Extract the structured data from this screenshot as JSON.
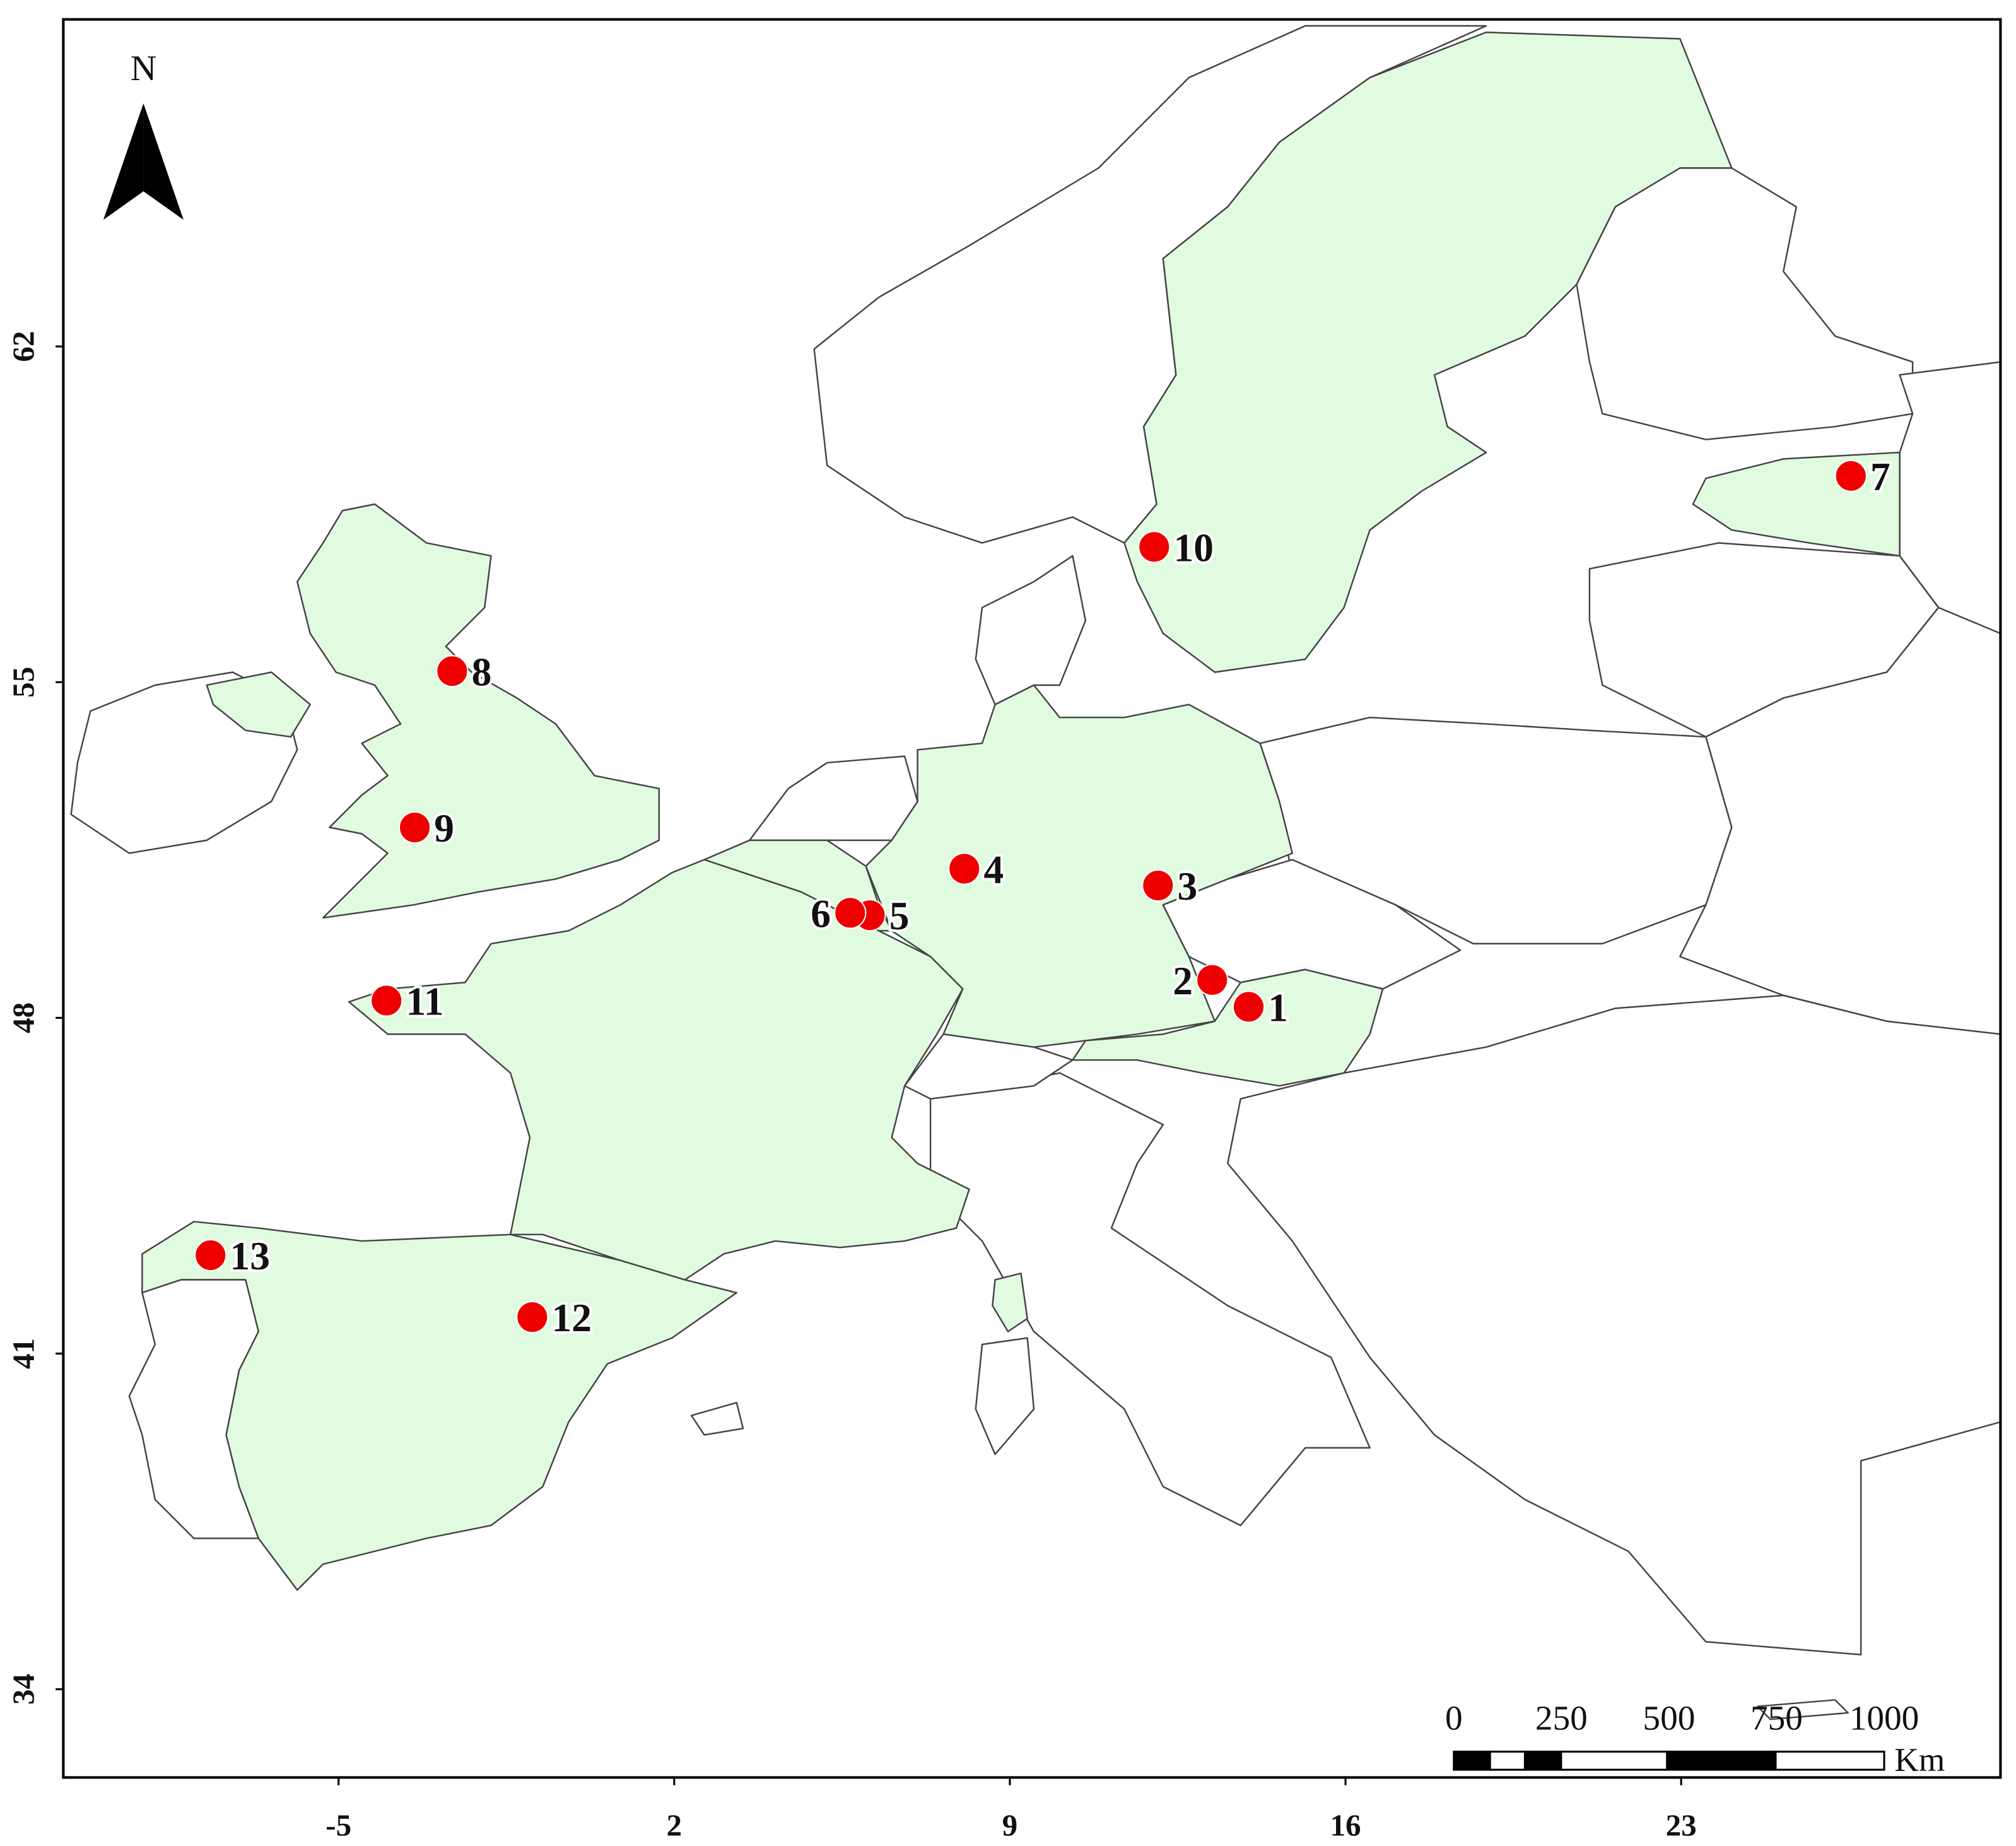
{
  "chart_data": {
    "type": "map",
    "xlim": [
      -10.74,
      29.66
    ],
    "ylim": [
      32.16,
      68.82
    ],
    "xticks": [
      -5,
      2,
      9,
      16,
      23
    ],
    "yticks": [
      62,
      55,
      48,
      41,
      34
    ],
    "points": {
      "labels": [
        "1",
        "2",
        "3",
        "4",
        "5",
        "6",
        "7",
        "8",
        "9",
        "10",
        "11",
        "12",
        "13"
      ],
      "x": [
        13.98,
        13.22,
        12.09,
        8.05,
        6.08,
        5.67,
        26.54,
        -2.63,
        -3.41,
        12.01,
        -4.0,
        -0.96,
        -7.67
      ],
      "y": [
        48.23,
        48.79,
        50.76,
        51.11,
        50.14,
        50.19,
        59.3,
        55.23,
        51.97,
        57.82,
        48.36,
        41.76,
        43.05
      ],
      "color": "#ee0000"
    },
    "north_label": "N",
    "scale_bar": {
      "ticks": [
        0,
        250,
        500,
        750,
        1000
      ],
      "unit": "Km"
    }
  }
}
